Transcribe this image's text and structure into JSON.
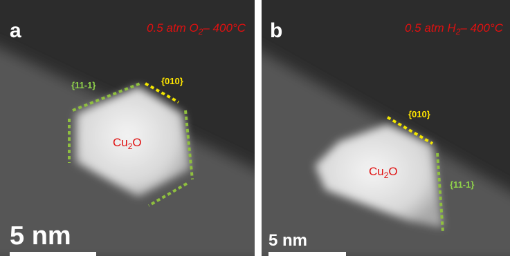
{
  "panels": [
    {
      "label": "a",
      "condition": {
        "prefix": "0.5 atm O",
        "subscript": "2",
        "suffix": "– 400°C"
      },
      "particle": {
        "main": "Cu",
        "subscript": "2",
        "rest": "O"
      },
      "facets": [
        "{11-1}",
        "{010}"
      ],
      "scale_bar": "5 nm"
    },
    {
      "label": "b",
      "condition": {
        "prefix": "0.5 atm H",
        "subscript": "2",
        "suffix": "– 400°C"
      },
      "particle": {
        "main": "Cu",
        "subscript": "2",
        "rest": "O"
      },
      "facets": [
        "{010}",
        "{11-1}"
      ],
      "scale_bar": "5 nm"
    }
  ]
}
